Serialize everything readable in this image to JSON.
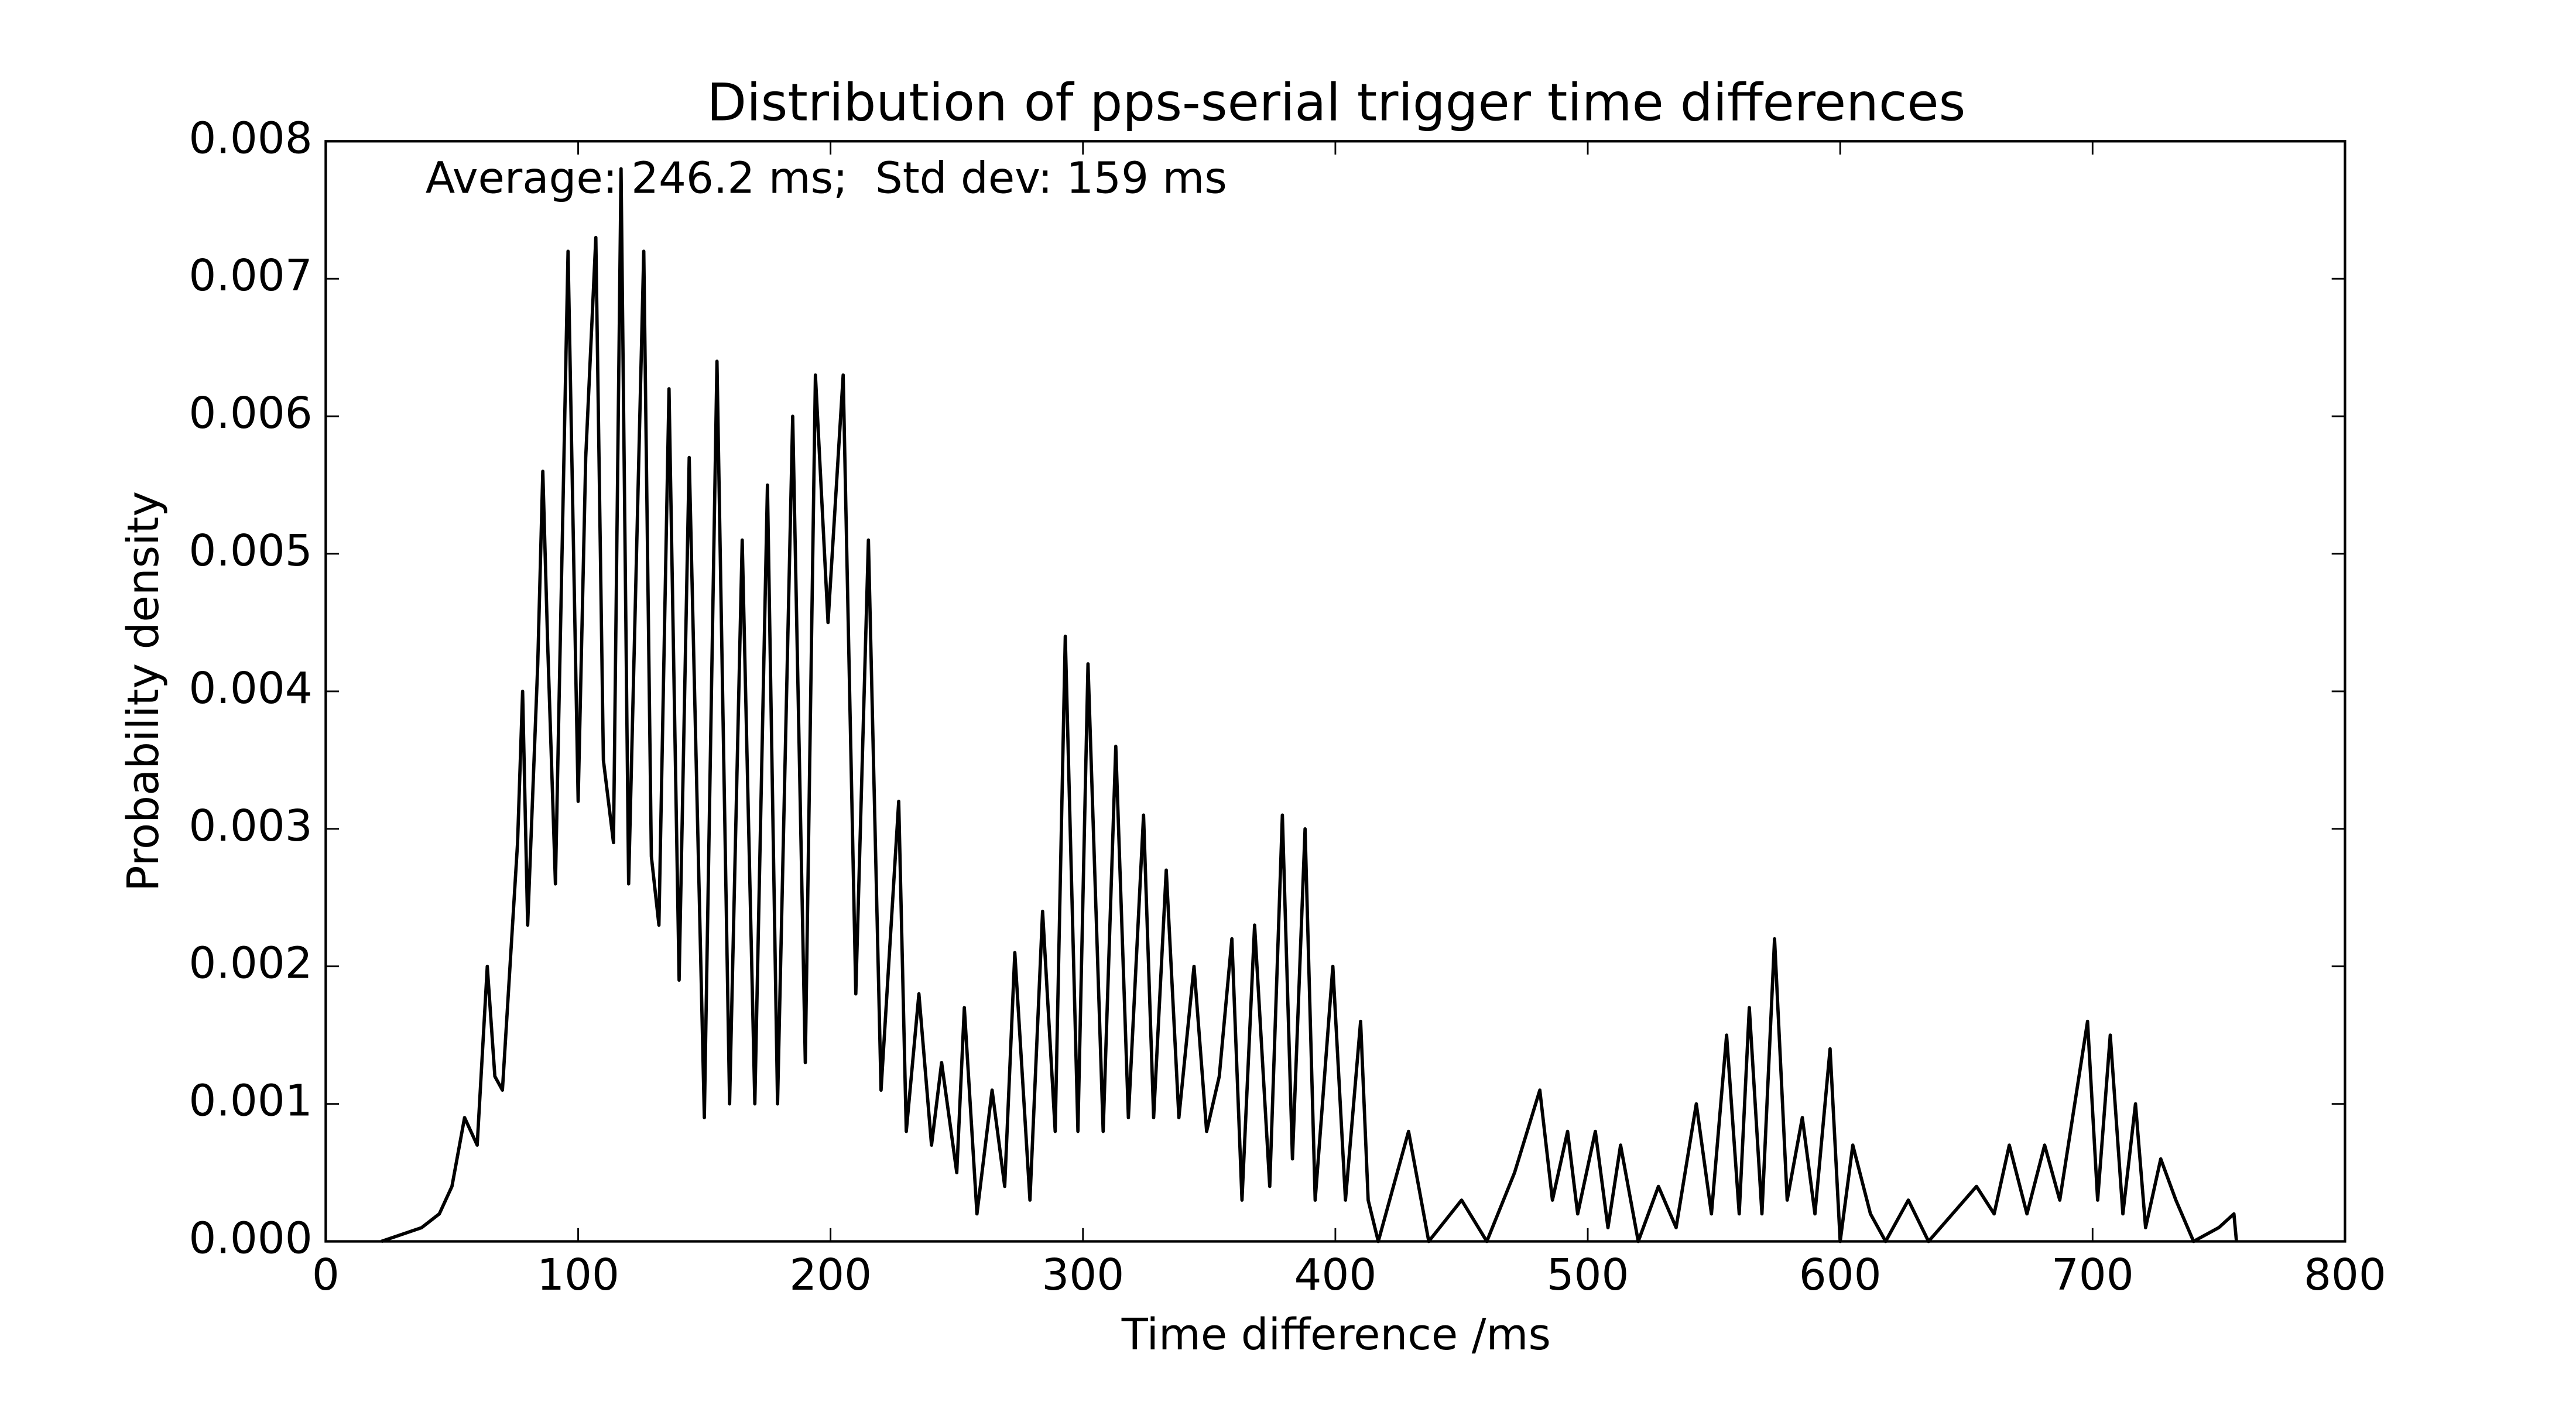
{
  "chart_data": {
    "type": "line",
    "title": "Distribution of pps-serial trigger time differences",
    "x_label": "Time difference /ms",
    "y_label": "Probability density",
    "annotation": "Average: 246.2 ms;  Std dev: 159 ms",
    "color": "#000000",
    "xlim": [
      0,
      800
    ],
    "xticks": [
      0,
      100,
      200,
      300,
      400,
      500,
      600,
      700,
      800
    ],
    "ylim": [
      0,
      0.008
    ],
    "yticks": [
      {
        "value": 0,
        "label": "0.000"
      },
      {
        "value": 0.001,
        "label": "0.001"
      },
      {
        "value": 0.002,
        "label": "0.002"
      },
      {
        "value": 0.003,
        "label": "0.003"
      },
      {
        "value": 0.004,
        "label": "0.004"
      },
      {
        "value": 0.005,
        "label": "0.005"
      },
      {
        "value": 0.006,
        "label": "0.006"
      },
      {
        "value": 0.007,
        "label": "0.007"
      },
      {
        "value": 0.008,
        "label": "0.008"
      }
    ],
    "x": [
      22,
      30,
      38,
      45,
      50,
      55,
      60,
      64,
      67,
      70,
      76,
      78,
      80,
      84,
      86,
      88,
      91,
      96,
      100,
      103,
      107,
      110,
      114,
      117,
      120,
      126,
      129,
      132,
      136,
      140,
      144,
      150,
      155,
      160,
      165,
      170,
      175,
      179,
      185,
      190,
      194,
      199,
      205,
      210,
      215,
      220,
      227,
      230,
      235,
      240,
      244,
      250,
      253,
      258,
      264,
      269,
      273,
      279,
      284,
      289,
      293,
      298,
      302,
      308,
      313,
      318,
      324,
      328,
      333,
      338,
      344,
      349,
      354,
      359,
      363,
      368,
      374,
      379,
      383,
      388,
      392,
      399,
      404,
      410,
      413,
      417,
      429,
      437,
      450,
      460,
      471,
      481,
      486,
      492,
      496,
      503,
      508,
      513,
      520,
      528,
      535,
      543,
      549,
      555,
      560,
      564,
      569,
      574,
      579,
      585,
      590,
      596,
      600,
      605,
      612,
      618,
      627,
      635,
      654,
      661,
      667,
      674,
      681,
      687,
      698,
      702,
      707,
      712,
      717,
      721,
      727,
      733,
      740,
      750,
      756,
      757
    ],
    "values": [
      0,
      5e-05,
      0.0001,
      0.0002,
      0.0004,
      0.0009,
      0.0007,
      0.002,
      0.0012,
      0.0011,
      0.0029,
      0.004,
      0.0023,
      0.0042,
      0.0056,
      0.0043,
      0.0026,
      0.0072,
      0.0032,
      0.0057,
      0.0073,
      0.0035,
      0.0029,
      0.0078,
      0.0026,
      0.0072,
      0.0028,
      0.0023,
      0.0062,
      0.0019,
      0.0057,
      0.0009,
      0.0064,
      0.001,
      0.0051,
      0.001,
      0.0055,
      0.001,
      0.006,
      0.0013,
      0.0063,
      0.0045,
      0.0063,
      0.0018,
      0.0051,
      0.0011,
      0.0032,
      0.0008,
      0.0018,
      0.0007,
      0.0013,
      0.0005,
      0.0017,
      0.0002,
      0.0011,
      0.0004,
      0.0021,
      0.0003,
      0.0024,
      0.0008,
      0.0044,
      0.0008,
      0.0042,
      0.0008,
      0.0036,
      0.0009,
      0.0031,
      0.0009,
      0.0027,
      0.0009,
      0.002,
      0.0008,
      0.0012,
      0.0022,
      0.0003,
      0.0023,
      0.0004,
      0.0031,
      0.0006,
      0.003,
      0.0003,
      0.002,
      0.0003,
      0.0016,
      0.0003,
      0,
      0.0008,
      0,
      0.0003,
      0,
      0.0005,
      0.0011,
      0.0003,
      0.0008,
      0.0002,
      0.0008,
      0.0001,
      0.0007,
      0,
      0.0004,
      0.0001,
      0.001,
      0.0002,
      0.0015,
      0.0002,
      0.0017,
      0.0002,
      0.0022,
      0.0003,
      0.0009,
      0.0002,
      0.0014,
      0,
      0.0007,
      0.0002,
      0,
      0.0003,
      0,
      0.0004,
      0.0002,
      0.0007,
      0.0002,
      0.0007,
      0.0003,
      0.0016,
      0.0003,
      0.0015,
      0.0002,
      0.001,
      0.0001,
      0.0006,
      0.0003,
      0,
      0.0001,
      0.0002,
      0
    ]
  }
}
